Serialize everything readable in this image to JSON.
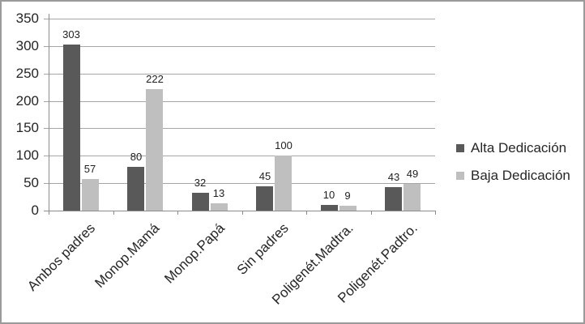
{
  "chart_data": {
    "type": "bar",
    "categories": [
      "Ambos padres",
      "Monop.Mamá",
      "Monop.Papá",
      "Sin padres",
      "Poligenét.Madtra.",
      "Poligenét.Padtro."
    ],
    "series": [
      {
        "name": "Alta Dedicación",
        "color": "#595959",
        "values": [
          303,
          80,
          32,
          45,
          10,
          43
        ]
      },
      {
        "name": "Baja Dedicación",
        "color": "#bfbfbf",
        "values": [
          57,
          222,
          13,
          100,
          9,
          49
        ]
      }
    ],
    "ylim": [
      0,
      350
    ],
    "y_tick_step": 50,
    "y_tick_labels": [
      "0",
      "50",
      "100",
      "150",
      "200",
      "250",
      "300",
      "350"
    ],
    "grid": true,
    "legend_position": "right",
    "bar_value_labels": true
  },
  "colors": {
    "background": "#ffffff",
    "frame_border": "#9a9a9a",
    "gridline": "#a6a6a6",
    "axis": "#8c8c8c",
    "text": "#262626"
  }
}
